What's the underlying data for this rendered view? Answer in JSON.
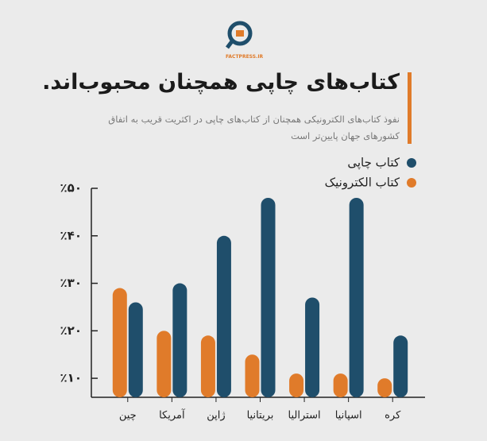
{
  "logo": "FACTPRESS.IR",
  "chart_data": {
    "type": "bar",
    "title": "کتاب‌های چاپی همچنان محبوب‌اند.",
    "subtitle": "نفوذ کتاب‌های الکترونیکی همچنان از کتاب‌های چاپی در اکثریت قریب به اتفاق کشورهای جهان پایین‌تر است",
    "categories": [
      "چین",
      "آمریکا",
      "ژاپن",
      "بریتانیا",
      "استرالیا",
      "اسپانیا",
      "کره"
    ],
    "series": [
      {
        "name": "کتاب الکترونیک",
        "color": "#e07b2a",
        "values": [
          29,
          20,
          19,
          15,
          11,
          11,
          10
        ]
      },
      {
        "name": "کتاب چاپی",
        "color": "#1f4e6b",
        "values": [
          26,
          30,
          40,
          48,
          27,
          48,
          19
        ]
      }
    ],
    "ylim": [
      6,
      50
    ],
    "yticks": [
      {
        "value": 10,
        "label": "٪۱۰"
      },
      {
        "value": 20,
        "label": "٪۲۰"
      },
      {
        "value": 30,
        "label": "٪۳۰"
      },
      {
        "value": 40,
        "label": "٪۴۰"
      },
      {
        "value": 50,
        "label": "٪۵۰"
      }
    ]
  }
}
